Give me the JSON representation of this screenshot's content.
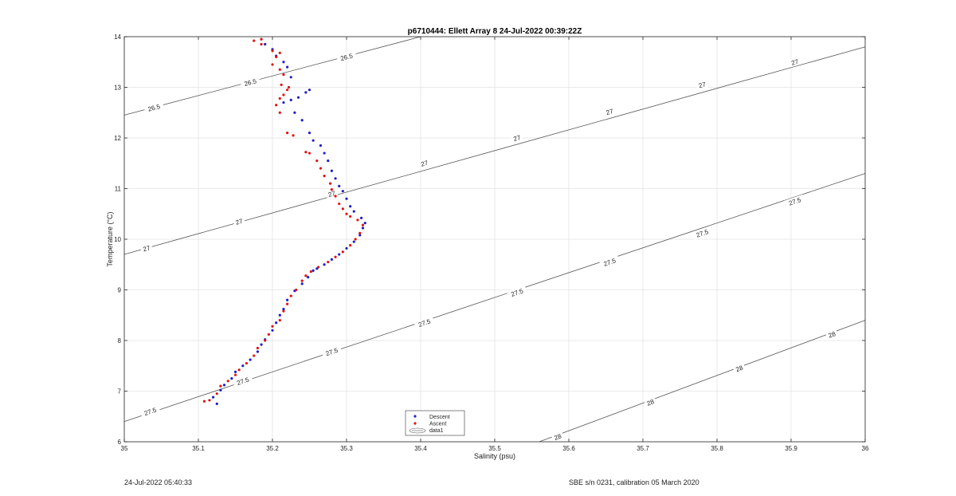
{
  "chart_data": {
    "type": "scatter",
    "title": "p6710444: Ellett Array 8 24-Jul-2022 00:39:22Z",
    "xlabel": "Salinity (psu)",
    "ylabel": "Temperature (°C)",
    "xlim": [
      35,
      36
    ],
    "ylim": [
      6,
      14
    ],
    "x_ticks": [
      "35",
      "35.1",
      "35.2",
      "35.3",
      "35.4",
      "35.5",
      "35.6",
      "35.7",
      "35.8",
      "35.9",
      "36"
    ],
    "y_ticks": [
      "6",
      "7",
      "8",
      "9",
      "10",
      "11",
      "12",
      "13",
      "14"
    ],
    "grid": true,
    "legend": {
      "placement": "bottom-center",
      "entries": [
        "Descent",
        "Ascent",
        "data1"
      ]
    },
    "colors": {
      "descent": "#1f1fc8",
      "ascent": "#e01414",
      "contour": "#555555",
      "grid": "#e3e3e3"
    },
    "series": [
      {
        "name": "Descent",
        "points": [
          [
            35.125,
            6.75
          ],
          [
            35.12,
            6.88
          ],
          [
            35.13,
            7.02
          ],
          [
            35.135,
            7.12
          ],
          [
            35.145,
            7.25
          ],
          [
            35.15,
            7.38
          ],
          [
            35.16,
            7.5
          ],
          [
            35.17,
            7.62
          ],
          [
            35.18,
            7.78
          ],
          [
            35.185,
            7.92
          ],
          [
            35.19,
            8.02
          ],
          [
            35.2,
            8.2
          ],
          [
            35.205,
            8.35
          ],
          [
            35.21,
            8.5
          ],
          [
            35.215,
            8.62
          ],
          [
            35.22,
            8.8
          ],
          [
            35.23,
            8.98
          ],
          [
            35.24,
            9.12
          ],
          [
            35.248,
            9.25
          ],
          [
            35.255,
            9.38
          ],
          [
            35.26,
            9.42
          ],
          [
            35.27,
            9.5
          ],
          [
            35.28,
            9.6
          ],
          [
            35.29,
            9.7
          ],
          [
            35.3,
            9.82
          ],
          [
            35.31,
            9.95
          ],
          [
            35.318,
            10.08
          ],
          [
            35.322,
            10.22
          ],
          [
            35.325,
            10.32
          ],
          [
            35.32,
            10.42
          ],
          [
            35.31,
            10.55
          ],
          [
            35.305,
            10.65
          ],
          [
            35.3,
            10.8
          ],
          [
            35.295,
            10.95
          ],
          [
            35.29,
            11.05
          ],
          [
            35.285,
            11.2
          ],
          [
            35.28,
            11.35
          ],
          [
            35.275,
            11.55
          ],
          [
            35.27,
            11.7
          ],
          [
            35.265,
            11.85
          ],
          [
            35.255,
            11.95
          ],
          [
            35.25,
            12.1
          ],
          [
            35.24,
            12.35
          ],
          [
            35.23,
            12.5
          ],
          [
            35.225,
            12.75
          ],
          [
            35.235,
            12.8
          ],
          [
            35.245,
            12.9
          ],
          [
            35.25,
            12.95
          ],
          [
            35.215,
            12.7
          ],
          [
            35.225,
            13.2
          ],
          [
            35.22,
            13.4
          ],
          [
            35.215,
            13.5
          ],
          [
            35.205,
            13.62
          ],
          [
            35.2,
            13.75
          ],
          [
            35.19,
            13.85
          ],
          [
            35.185,
            13.95
          ]
        ]
      },
      {
        "name": "Ascent",
        "points": [
          [
            35.108,
            6.8
          ],
          [
            35.115,
            6.82
          ],
          [
            35.125,
            6.95
          ],
          [
            35.13,
            7.1
          ],
          [
            35.14,
            7.2
          ],
          [
            35.15,
            7.32
          ],
          [
            35.155,
            7.42
          ],
          [
            35.165,
            7.55
          ],
          [
            35.175,
            7.7
          ],
          [
            35.18,
            7.85
          ],
          [
            35.19,
            8.0
          ],
          [
            35.195,
            8.12
          ],
          [
            35.2,
            8.28
          ],
          [
            35.21,
            8.4
          ],
          [
            35.215,
            8.58
          ],
          [
            35.22,
            8.72
          ],
          [
            35.225,
            8.88
          ],
          [
            35.232,
            9.0
          ],
          [
            35.24,
            9.18
          ],
          [
            35.245,
            9.28
          ],
          [
            35.252,
            9.36
          ],
          [
            35.262,
            9.45
          ],
          [
            35.275,
            9.55
          ],
          [
            35.285,
            9.65
          ],
          [
            35.295,
            9.75
          ],
          [
            35.305,
            9.88
          ],
          [
            35.312,
            10.0
          ],
          [
            35.318,
            10.12
          ],
          [
            35.322,
            10.28
          ],
          [
            35.315,
            10.38
          ],
          [
            35.305,
            10.45
          ],
          [
            35.3,
            10.5
          ],
          [
            35.295,
            10.6
          ],
          [
            35.29,
            10.7
          ],
          [
            35.285,
            10.85
          ],
          [
            35.28,
            10.98
          ],
          [
            35.278,
            11.1
          ],
          [
            35.27,
            11.25
          ],
          [
            35.265,
            11.4
          ],
          [
            35.26,
            11.55
          ],
          [
            35.25,
            11.7
          ],
          [
            35.245,
            11.72
          ],
          [
            35.228,
            12.05
          ],
          [
            35.22,
            12.1
          ],
          [
            35.21,
            12.5
          ],
          [
            35.205,
            12.65
          ],
          [
            35.21,
            12.78
          ],
          [
            35.215,
            12.85
          ],
          [
            35.22,
            12.95
          ],
          [
            35.222,
            13.0
          ],
          [
            35.212,
            13.05
          ],
          [
            35.215,
            13.25
          ],
          [
            35.21,
            13.35
          ],
          [
            35.2,
            13.45
          ],
          [
            35.205,
            13.6
          ],
          [
            35.21,
            13.68
          ],
          [
            35.2,
            13.72
          ],
          [
            35.185,
            13.85
          ],
          [
            35.175,
            13.92
          ],
          [
            35.185,
            13.95
          ]
        ]
      }
    ],
    "contours": [
      {
        "label": "26.5",
        "line": [
          [
            35,
            12.45
          ],
          [
            35.4,
            14
          ]
        ],
        "label_pos": [
          [
            35.04,
            12.6
          ],
          [
            35.17,
            13.1
          ],
          [
            35.3,
            13.6
          ]
        ]
      },
      {
        "label": "27",
        "line": [
          [
            35,
            9.7
          ],
          [
            36,
            13.8
          ]
        ],
        "label_pos": [
          [
            35.03,
            9.82
          ],
          [
            35.155,
            10.35
          ],
          [
            35.28,
            10.9
          ],
          [
            35.405,
            11.5
          ],
          [
            35.53,
            12.0
          ],
          [
            35.655,
            12.52
          ],
          [
            35.78,
            13.05
          ],
          [
            35.905,
            13.5
          ]
        ]
      },
      {
        "label": "27.5",
        "line": [
          [
            35,
            6.4
          ],
          [
            36,
            11.3
          ]
        ],
        "label_pos": [
          [
            35.035,
            6.6
          ],
          [
            35.16,
            7.2
          ],
          [
            35.28,
            7.78
          ],
          [
            35.405,
            8.35
          ],
          [
            35.53,
            8.95
          ],
          [
            35.655,
            9.55
          ],
          [
            35.78,
            10.12
          ],
          [
            35.905,
            10.75
          ]
        ]
      },
      {
        "label": "28",
        "line": [
          [
            35.56,
            6
          ],
          [
            36,
            8.4
          ]
        ],
        "label_pos": [
          [
            35.585,
            6.1
          ],
          [
            35.71,
            6.78
          ],
          [
            35.83,
            7.45
          ],
          [
            35.955,
            8.12
          ]
        ]
      }
    ]
  },
  "footer": {
    "left": "24-Jul-2022 05:40:33",
    "right": "SBE s/n 0231, calibration 05 March 2020"
  }
}
